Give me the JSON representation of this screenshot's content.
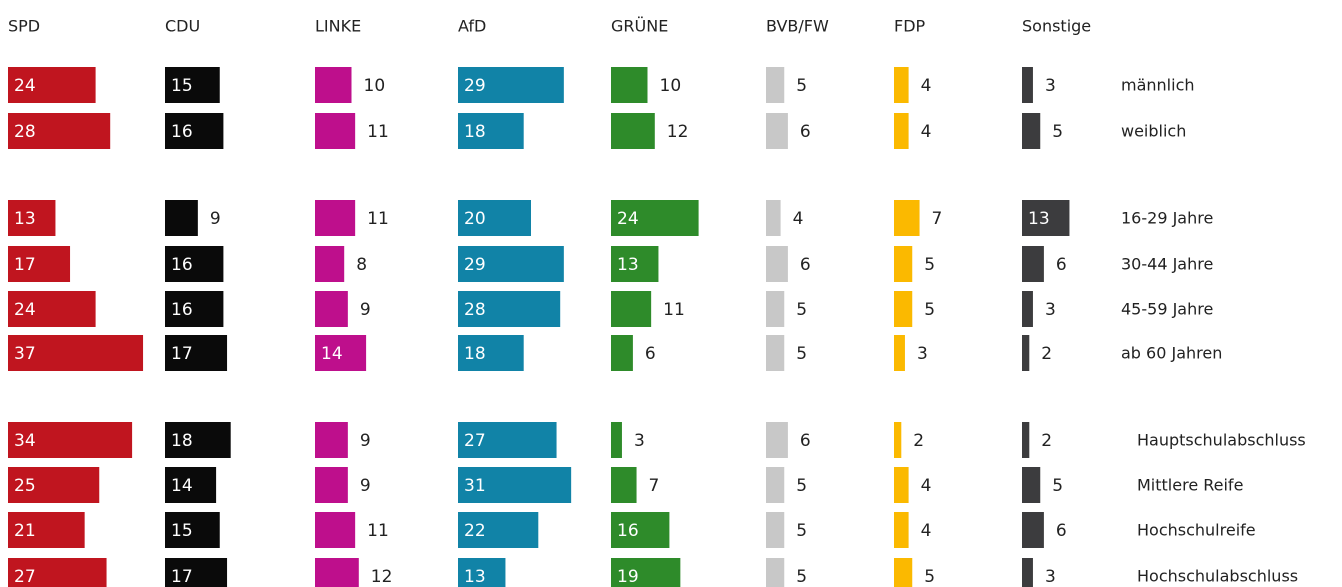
{
  "chart_data": {
    "type": "bar",
    "categories": [
      "männlich",
      "weiblich",
      "16-29 Jahre",
      "30-44 Jahre",
      "45-59 Jahre",
      "ab 60 Jahren",
      "Hauptschulabschluss",
      "Mittlere Reife",
      "Hochschulreife",
      "Hochschulabschluss"
    ],
    "series": [
      {
        "name": "SPD",
        "color": "#c0151f",
        "values": [
          24,
          28,
          13,
          17,
          24,
          37,
          34,
          25,
          21,
          27
        ]
      },
      {
        "name": "CDU",
        "color": "#0a0a0a",
        "values": [
          15,
          16,
          9,
          16,
          16,
          17,
          18,
          14,
          15,
          17
        ]
      },
      {
        "name": "LINKE",
        "color": "#be0f8c",
        "values": [
          10,
          11,
          11,
          8,
          9,
          14,
          9,
          9,
          11,
          12
        ]
      },
      {
        "name": "AfD",
        "color": "#1183a7",
        "values": [
          29,
          18,
          20,
          29,
          28,
          18,
          27,
          31,
          22,
          13
        ]
      },
      {
        "name": "GRÜNE",
        "color": "#2e8b2a",
        "values": [
          10,
          12,
          24,
          13,
          11,
          6,
          3,
          7,
          16,
          19
        ]
      },
      {
        "name": "BVB/FW",
        "color": "#c8c8c8",
        "values": [
          5,
          6,
          4,
          6,
          5,
          5,
          6,
          5,
          5,
          5
        ]
      },
      {
        "name": "FDP",
        "color": "#fbb900",
        "values": [
          4,
          4,
          7,
          5,
          5,
          3,
          2,
          4,
          4,
          5
        ]
      },
      {
        "name": "Sonstige",
        "color": "#3c3c3e",
        "values": [
          3,
          5,
          13,
          6,
          3,
          2,
          2,
          5,
          6,
          3
        ]
      }
    ]
  }
}
